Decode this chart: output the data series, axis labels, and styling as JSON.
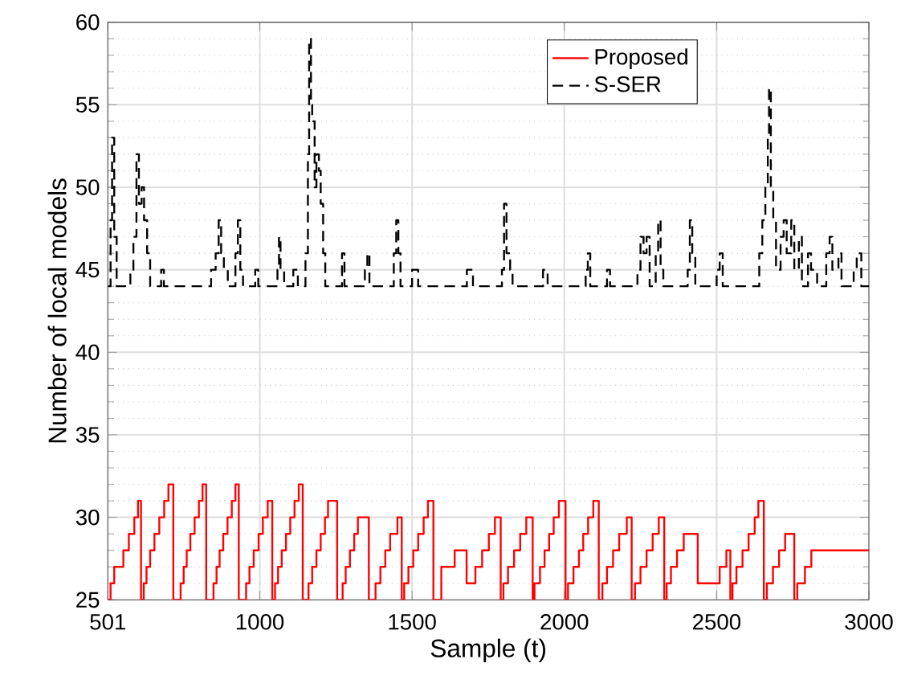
{
  "chart_data": {
    "type": "step",
    "xlabel": "Sample (t)",
    "ylabel": "Number of local models",
    "xlim": [
      501,
      3000
    ],
    "xticks": [
      501,
      1000,
      1500,
      2000,
      2500,
      3000
    ],
    "ylim": [
      25,
      60
    ],
    "yticks": [
      25,
      30,
      35,
      40,
      45,
      50,
      55,
      60
    ],
    "grid": true,
    "legend": "top right",
    "series": [
      {
        "name": "Proposed",
        "color": "#ff0000",
        "line_style": "solid",
        "x": [
          501,
          510,
          522,
          552,
          570,
          588,
          600,
          610,
          619,
          628,
          640,
          654,
          670,
          686,
          700,
          716,
          740,
          750,
          760,
          772,
          786,
          800,
          812,
          824,
          848,
          858,
          868,
          880,
          894,
          908,
          920,
          931,
          955,
          966,
          980,
          996,
          1010,
          1026,
          1041,
          1050,
          1060,
          1072,
          1086,
          1100,
          1114,
          1128,
          1141,
          1160,
          1172,
          1186,
          1200,
          1214,
          1224,
          1254,
          1272,
          1282,
          1296,
          1310,
          1322,
          1358,
          1380,
          1396,
          1412,
          1428,
          1452,
          1466,
          1474,
          1488,
          1504,
          1520,
          1538,
          1552,
          1570,
          1596,
          1640,
          1679,
          1708,
          1730,
          1752,
          1772,
          1791,
          1800,
          1815,
          1835,
          1855,
          1875,
          1896,
          1902,
          1920,
          1935,
          1950,
          1965,
          1982,
          2004,
          2012,
          2030,
          2048,
          2062,
          2078,
          2095,
          2113,
          2125,
          2140,
          2160,
          2180,
          2205,
          2221,
          2232,
          2250,
          2270,
          2290,
          2310,
          2328,
          2336,
          2350,
          2370,
          2392,
          2438,
          2510,
          2532,
          2545,
          2552,
          2565,
          2585,
          2605,
          2625,
          2637,
          2655,
          2665,
          2685,
          2705,
          2725,
          2755,
          2765,
          2790,
          2811,
          3000
        ],
        "values": [
          25,
          26,
          27,
          28,
          29,
          30,
          31,
          25,
          26,
          27,
          28,
          29,
          30,
          31,
          32,
          25,
          26,
          27,
          28,
          29,
          30,
          31,
          32,
          25,
          26,
          27,
          28,
          29,
          30,
          31,
          32,
          25,
          26,
          27,
          28,
          29,
          30,
          31,
          25,
          26,
          27,
          28,
          29,
          30,
          31,
          32,
          25,
          26,
          27,
          28,
          29,
          30,
          31,
          25,
          26,
          27,
          28,
          29,
          30,
          25,
          26,
          27,
          28,
          29,
          30,
          25,
          26,
          27,
          28,
          29,
          30,
          31,
          25,
          27,
          28,
          26,
          27,
          28,
          29,
          30,
          25,
          26,
          27,
          28,
          29,
          30,
          25,
          26,
          27,
          28,
          29,
          30,
          31,
          25,
          26,
          27,
          28,
          29,
          30,
          31,
          25,
          26,
          27,
          28,
          29,
          30,
          25,
          26,
          27,
          28,
          29,
          30,
          25,
          26,
          27,
          28,
          29,
          26,
          27,
          28,
          25,
          26,
          27,
          28,
          29,
          30,
          31,
          25,
          26,
          27,
          28,
          29,
          25,
          26,
          27,
          28,
          28
        ]
      },
      {
        "name": "S-SER",
        "color": "#000000",
        "line_style": "dashed",
        "x": [
          501,
          510,
          515,
          522,
          530,
          575,
          585,
          595,
          603,
          612,
          620,
          630,
          640,
          676,
          685,
          840,
          855,
          865,
          873,
          882,
          895,
          920,
          928,
          936,
          945,
          985,
          995,
          1058,
          1063,
          1068,
          1080,
          1110,
          1125,
          1150,
          1158,
          1162,
          1168,
          1172,
          1180,
          1186,
          1194,
          1200,
          1208,
          1215,
          1270,
          1278,
          1345,
          1353,
          1360,
          1440,
          1448,
          1455,
          1462,
          1500,
          1520,
          1680,
          1700,
          1795,
          1802,
          1810,
          1822,
          1830,
          1930,
          1945,
          2070,
          2077,
          2085,
          2140,
          2150,
          2240,
          2250,
          2260,
          2270,
          2280,
          2300,
          2308,
          2316,
          2325,
          2405,
          2412,
          2420,
          2430,
          2500,
          2510,
          2520,
          2640,
          2650,
          2660,
          2668,
          2672,
          2678,
          2686,
          2695,
          2710,
          2720,
          2730,
          2745,
          2755,
          2770,
          2780,
          2800,
          2810,
          2830,
          2860,
          2871,
          2880,
          2900,
          2910,
          2950,
          2960,
          2975,
          3000
        ],
        "values": [
          44,
          48,
          53,
          47,
          44,
          45,
          47,
          52,
          49,
          50,
          48,
          46,
          44,
          45,
          44,
          45,
          46,
          48,
          46,
          45,
          44,
          46,
          48,
          45,
          44,
          45,
          44,
          45,
          47,
          45,
          44,
          45,
          44,
          46,
          52,
          59,
          55,
          54,
          50,
          52,
          51,
          49,
          46,
          44,
          46,
          44,
          45,
          46,
          44,
          46,
          48,
          46,
          44,
          45,
          44,
          45,
          44,
          45,
          49,
          46,
          45,
          44,
          45,
          44,
          45,
          46,
          44,
          45,
          44,
          45,
          47,
          46,
          47,
          44,
          46,
          48,
          45,
          44,
          45,
          48,
          46,
          44,
          45,
          46,
          44,
          46,
          48,
          50,
          53,
          56,
          50,
          48,
          45,
          47,
          48,
          46,
          48,
          45,
          47,
          44,
          46,
          45,
          44,
          46,
          47,
          45,
          46,
          44,
          45,
          46,
          44,
          44
        ]
      }
    ]
  }
}
